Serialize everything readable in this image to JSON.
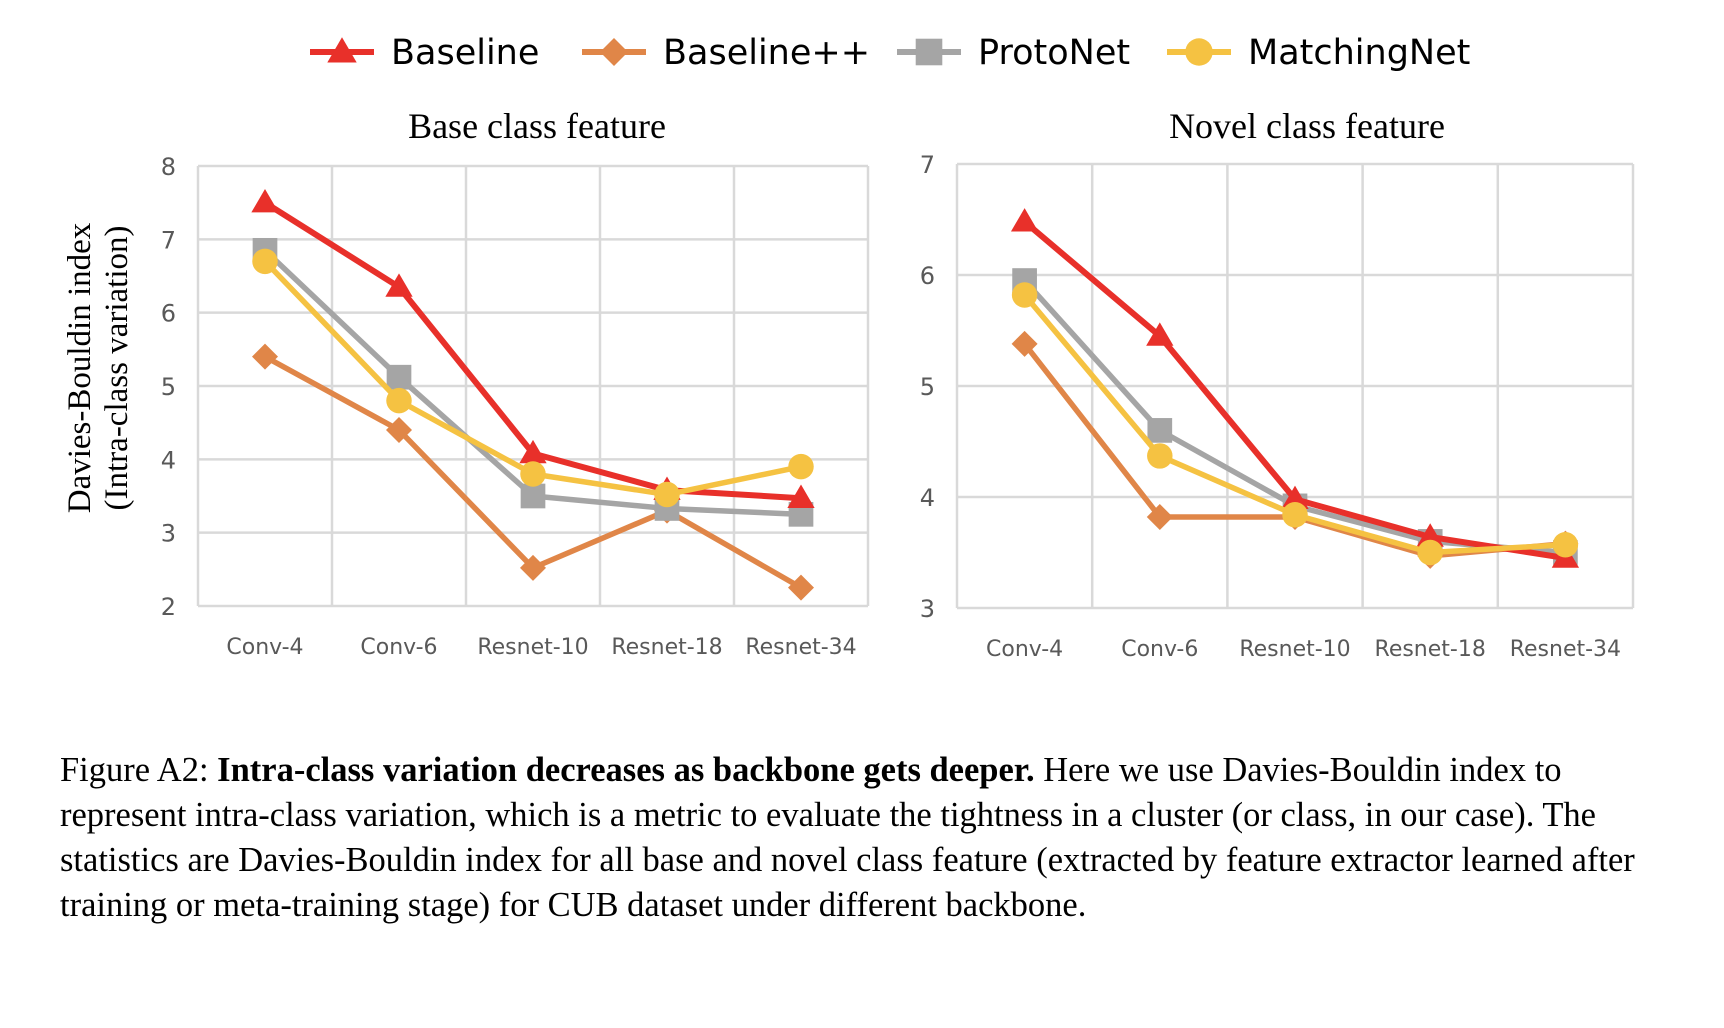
{
  "legend": [
    {
      "name": "Baseline",
      "color": "#e8302a",
      "marker": "triangle"
    },
    {
      "name": "Baseline++",
      "color": "#e08648",
      "marker": "diamond"
    },
    {
      "name": "ProtoNet",
      "color": "#a5a5a5",
      "marker": "square"
    },
    {
      "name": "MatchingNet",
      "color": "#f5c242",
      "marker": "circle"
    }
  ],
  "y_axis_label_line1": "Davies-Bouldin index",
  "y_axis_label_line2": "(Intra-class variation)",
  "chart_data": [
    {
      "type": "line",
      "title": "Base class feature",
      "xlabel": "",
      "ylabel": "Davies-Bouldin index (Intra-class variation)",
      "categories": [
        "Conv-4",
        "Conv-6",
        "Resnet-10",
        "Resnet-18",
        "Resnet-34"
      ],
      "ylim": [
        2,
        8
      ],
      "yticks": [
        2,
        3,
        4,
        5,
        6,
        7,
        8
      ],
      "grid": true,
      "legend": "top",
      "series": [
        {
          "name": "Baseline",
          "values": [
            7.5,
            6.35,
            4.08,
            3.58,
            3.47
          ]
        },
        {
          "name": "Baseline++",
          "values": [
            5.4,
            4.4,
            2.52,
            3.3,
            2.25
          ]
        },
        {
          "name": "ProtoNet",
          "values": [
            6.85,
            5.12,
            3.5,
            3.33,
            3.25
          ]
        },
        {
          "name": "MatchingNet",
          "values": [
            6.7,
            4.8,
            3.8,
            3.52,
            3.9
          ]
        }
      ]
    },
    {
      "type": "line",
      "title": "Novel class feature",
      "xlabel": "",
      "ylabel": "",
      "categories": [
        "Conv-4",
        "Conv-6",
        "Resnet-10",
        "Resnet-18",
        "Resnet-34"
      ],
      "ylim": [
        3,
        7
      ],
      "yticks": [
        3,
        4,
        5,
        6,
        7
      ],
      "grid": true,
      "legend": "top",
      "series": [
        {
          "name": "Baseline",
          "values": [
            6.48,
            5.45,
            3.98,
            3.64,
            3.45
          ]
        },
        {
          "name": "Baseline++",
          "values": [
            5.38,
            3.82,
            3.82,
            3.47,
            3.58
          ]
        },
        {
          "name": "ProtoNet",
          "values": [
            5.95,
            4.6,
            3.92,
            3.6,
            3.5
          ]
        },
        {
          "name": "MatchingNet",
          "values": [
            5.82,
            4.37,
            3.84,
            3.5,
            3.57
          ]
        }
      ]
    }
  ],
  "caption": {
    "prefix": "Figure A2: ",
    "bold": "Intra-class variation decreases as backbone gets deeper.",
    "rest": " Here we use Davies-Bouldin index to represent intra-class variation, which is a metric to evaluate the tightness in a cluster (or class, in our case). The statistics are Davies-Bouldin index for all base and novel class feature (extracted by feature extractor learned after training or meta-training stage) for CUB dataset under different backbone."
  }
}
